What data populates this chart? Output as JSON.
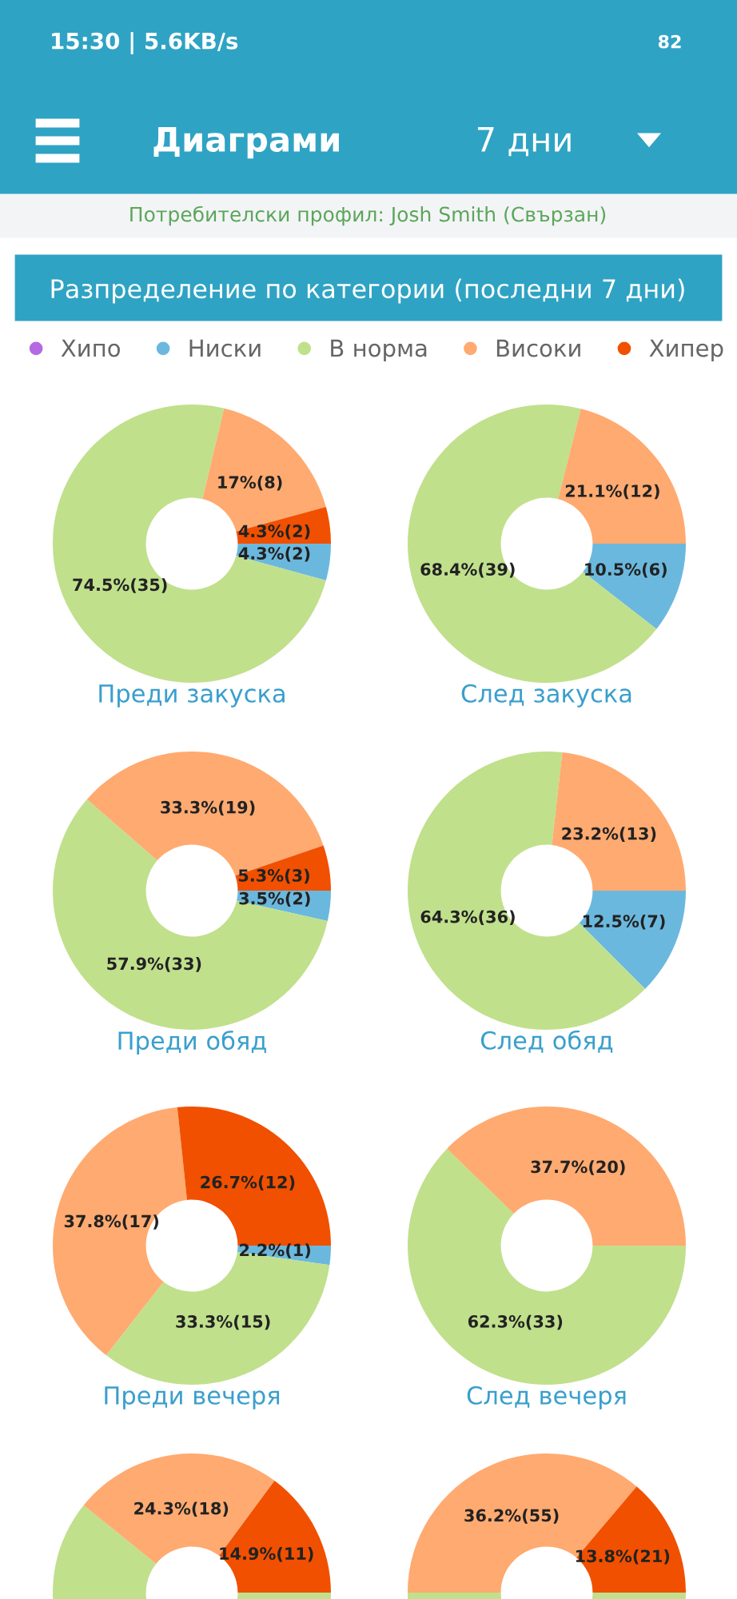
{
  "chart_data": [
    {
      "type": "donut",
      "title": "Преди закуска",
      "categories": [
        "Хипо",
        "Ниски",
        "В норма",
        "Високи",
        "Хипер"
      ],
      "values": [
        0,
        2,
        35,
        8,
        2
      ],
      "colors": [
        "#b36ae2",
        "#6bb8de",
        "#c0e08c",
        "#ffaa70",
        "#f05000"
      ],
      "value_labels": [
        null,
        "4.3%(2)",
        "74.5%(35)",
        "17%(8)",
        "4.3%(2)"
      ],
      "legend": "top",
      "annotations": [
        "15:30 | 5.6KB/s",
        "82",
        "Диаграми",
        "7 дни",
        "Потребителски профил: Josh Smith (Свързан)",
        "Разпределение по категории (последни 7 дни)"
      ]
    },
    {
      "type": "donut",
      "title": "След закуска",
      "values": [
        0,
        6,
        39,
        12,
        0
      ],
      "colors": [
        "#b36ae2",
        "#6bb8de",
        "#c0e08c",
        "#ffaa70",
        "#f05000"
      ],
      "value_labels": [
        null,
        "10.5%(6)",
        "68.4%(39)",
        "21.1%(12)",
        null
      ]
    },
    {
      "type": "donut",
      "title": "Преди обяд",
      "values": [
        0,
        2,
        33,
        19,
        3
      ],
      "colors": [
        "#b36ae2",
        "#6bb8de",
        "#c0e08c",
        "#ffaa70",
        "#f05000"
      ],
      "value_labels": [
        null,
        "3.5%(2)",
        "57.9%(33)",
        "33.3%(19)",
        "5.3%(3)"
      ]
    },
    {
      "type": "donut",
      "title": "След обяд",
      "values": [
        0,
        7,
        36,
        13,
        0
      ],
      "colors": [
        "#b36ae2",
        "#6bb8de",
        "#c0e08c",
        "#ffaa70",
        "#f05000"
      ],
      "value_labels": [
        null,
        "12.5%(7)",
        "64.3%(36)",
        "23.2%(13)",
        null
      ]
    },
    {
      "type": "donut",
      "title": "Преди вечеря",
      "values": [
        0,
        1,
        15,
        17,
        12
      ],
      "colors": [
        "#b36ae2",
        "#6bb8de",
        "#c0e08c",
        "#ffaa70",
        "#f05000"
      ],
      "value_labels": [
        null,
        "2.2%(1)",
        "33.3%(15)",
        "37.8%(17)",
        "26.7%(12)"
      ]
    },
    {
      "type": "donut",
      "title": "След вечеря",
      "values": [
        0,
        0,
        33,
        20,
        0
      ],
      "colors": [
        "#b36ae2",
        "#6bb8de",
        "#c0e08c",
        "#ffaa70",
        "#f05000"
      ],
      "value_labels": [
        null,
        null,
        "62.3%(33)",
        "37.7%(20)",
        null
      ]
    },
    {
      "type": "donut",
      "values": [
        0,
        0,
        45,
        18,
        11
      ],
      "colors": [
        "#b36ae2",
        "#6bb8de",
        "#c0e08c",
        "#ffaa70",
        "#f05000"
      ],
      "value_labels": [
        null,
        null,
        null,
        "24.3%(18)",
        "14.9%(11)"
      ]
    },
    {
      "type": "donut",
      "values": [
        0,
        0,
        76,
        55,
        21
      ],
      "colors": [
        "#b36ae2",
        "#6bb8de",
        "#c0e08c",
        "#ffaa70",
        "#f05000"
      ],
      "value_labels": [
        null,
        null,
        null,
        "36.2%(55)",
        "13.8%(21)"
      ]
    }
  ]
}
